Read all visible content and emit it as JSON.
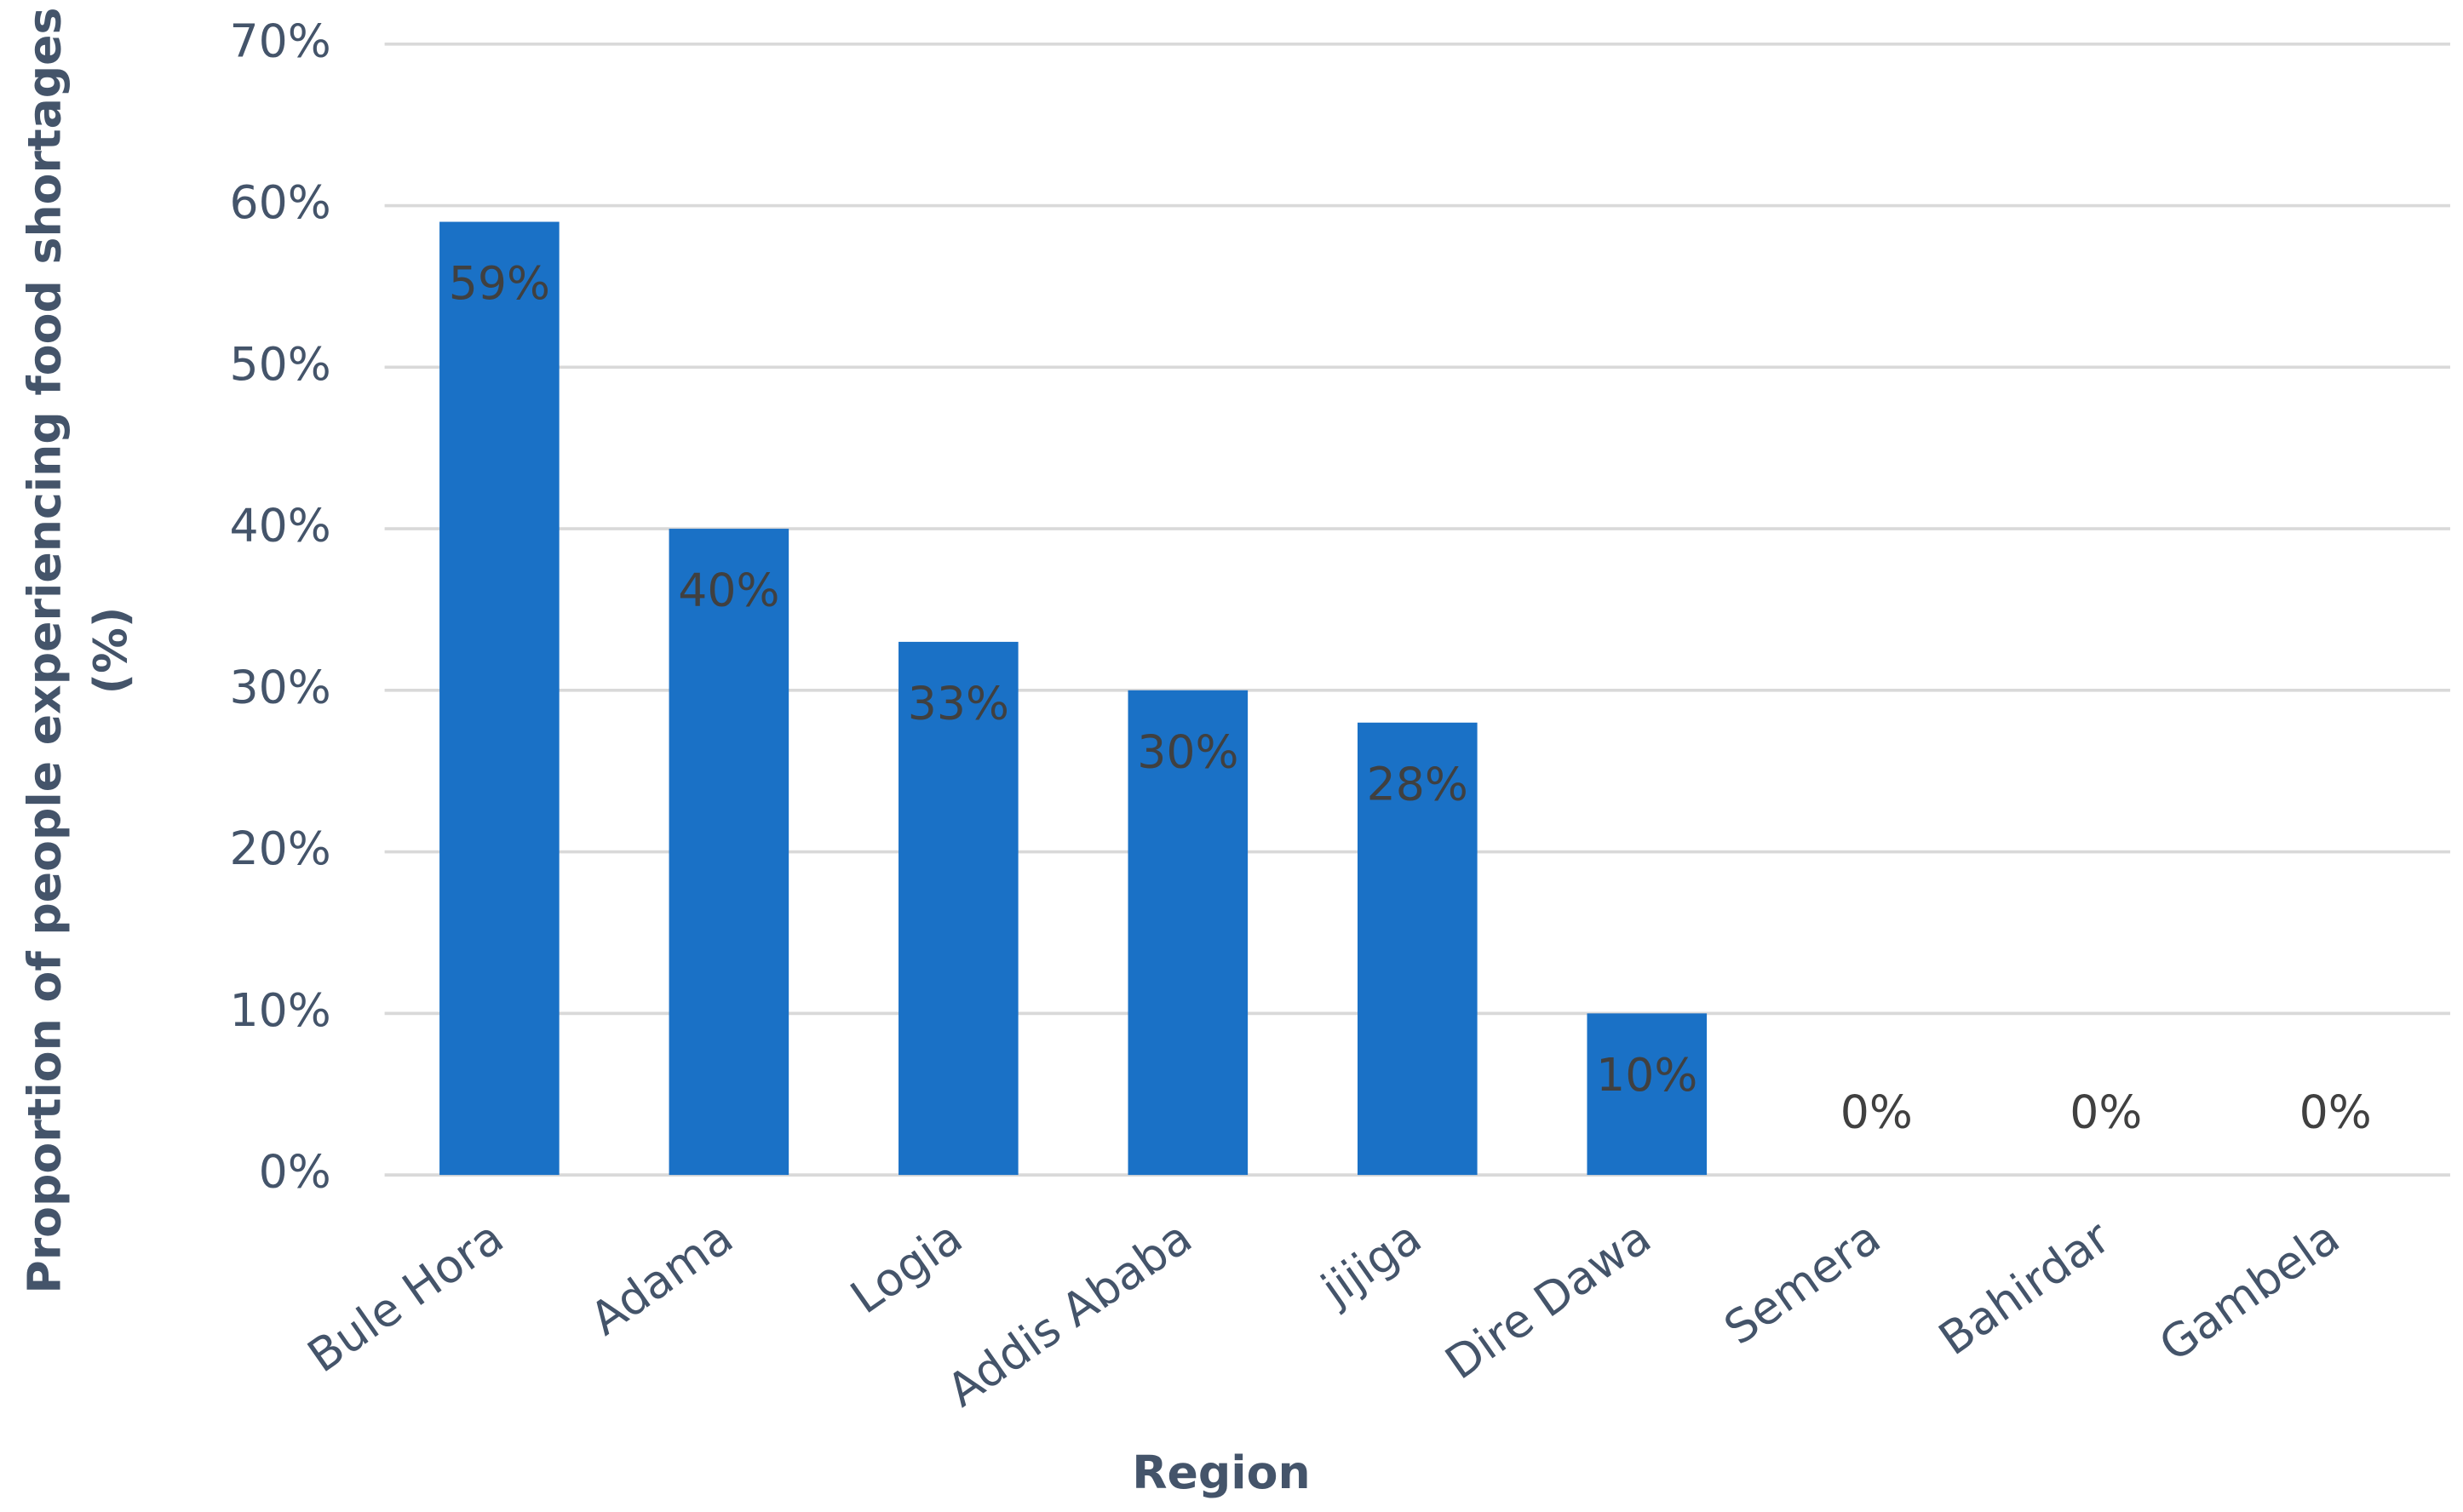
{
  "chart_data": {
    "type": "bar",
    "xlabel": "Region",
    "ylabel": [
      "Proportion of people experiencing food shortages",
      "(%)"
    ],
    "categories": [
      "Bule Hora",
      "Adama",
      "Logia",
      "Addis Ababa",
      "jijiga",
      "Dire Dawa",
      "Semera",
      "Bahirdar",
      "Gambela"
    ],
    "values": [
      59,
      40,
      33,
      30,
      28,
      10,
      0,
      0,
      0
    ],
    "value_labels": [
      "59%",
      "40%",
      "33%",
      "30%",
      "28%",
      "10%",
      "0%",
      "0%",
      "0%"
    ],
    "color": "#1a71c6",
    "ylim": [
      0,
      70
    ],
    "yticks": [
      {
        "value": 0,
        "label": "0%"
      },
      {
        "value": 10,
        "label": "10%"
      },
      {
        "value": 20,
        "label": "20%"
      },
      {
        "value": 30,
        "label": "30%"
      },
      {
        "value": 40,
        "label": "40%"
      },
      {
        "value": 50,
        "label": "50%"
      },
      {
        "value": 60,
        "label": "60%"
      },
      {
        "value": 70,
        "label": "70%"
      }
    ],
    "grid": true
  }
}
